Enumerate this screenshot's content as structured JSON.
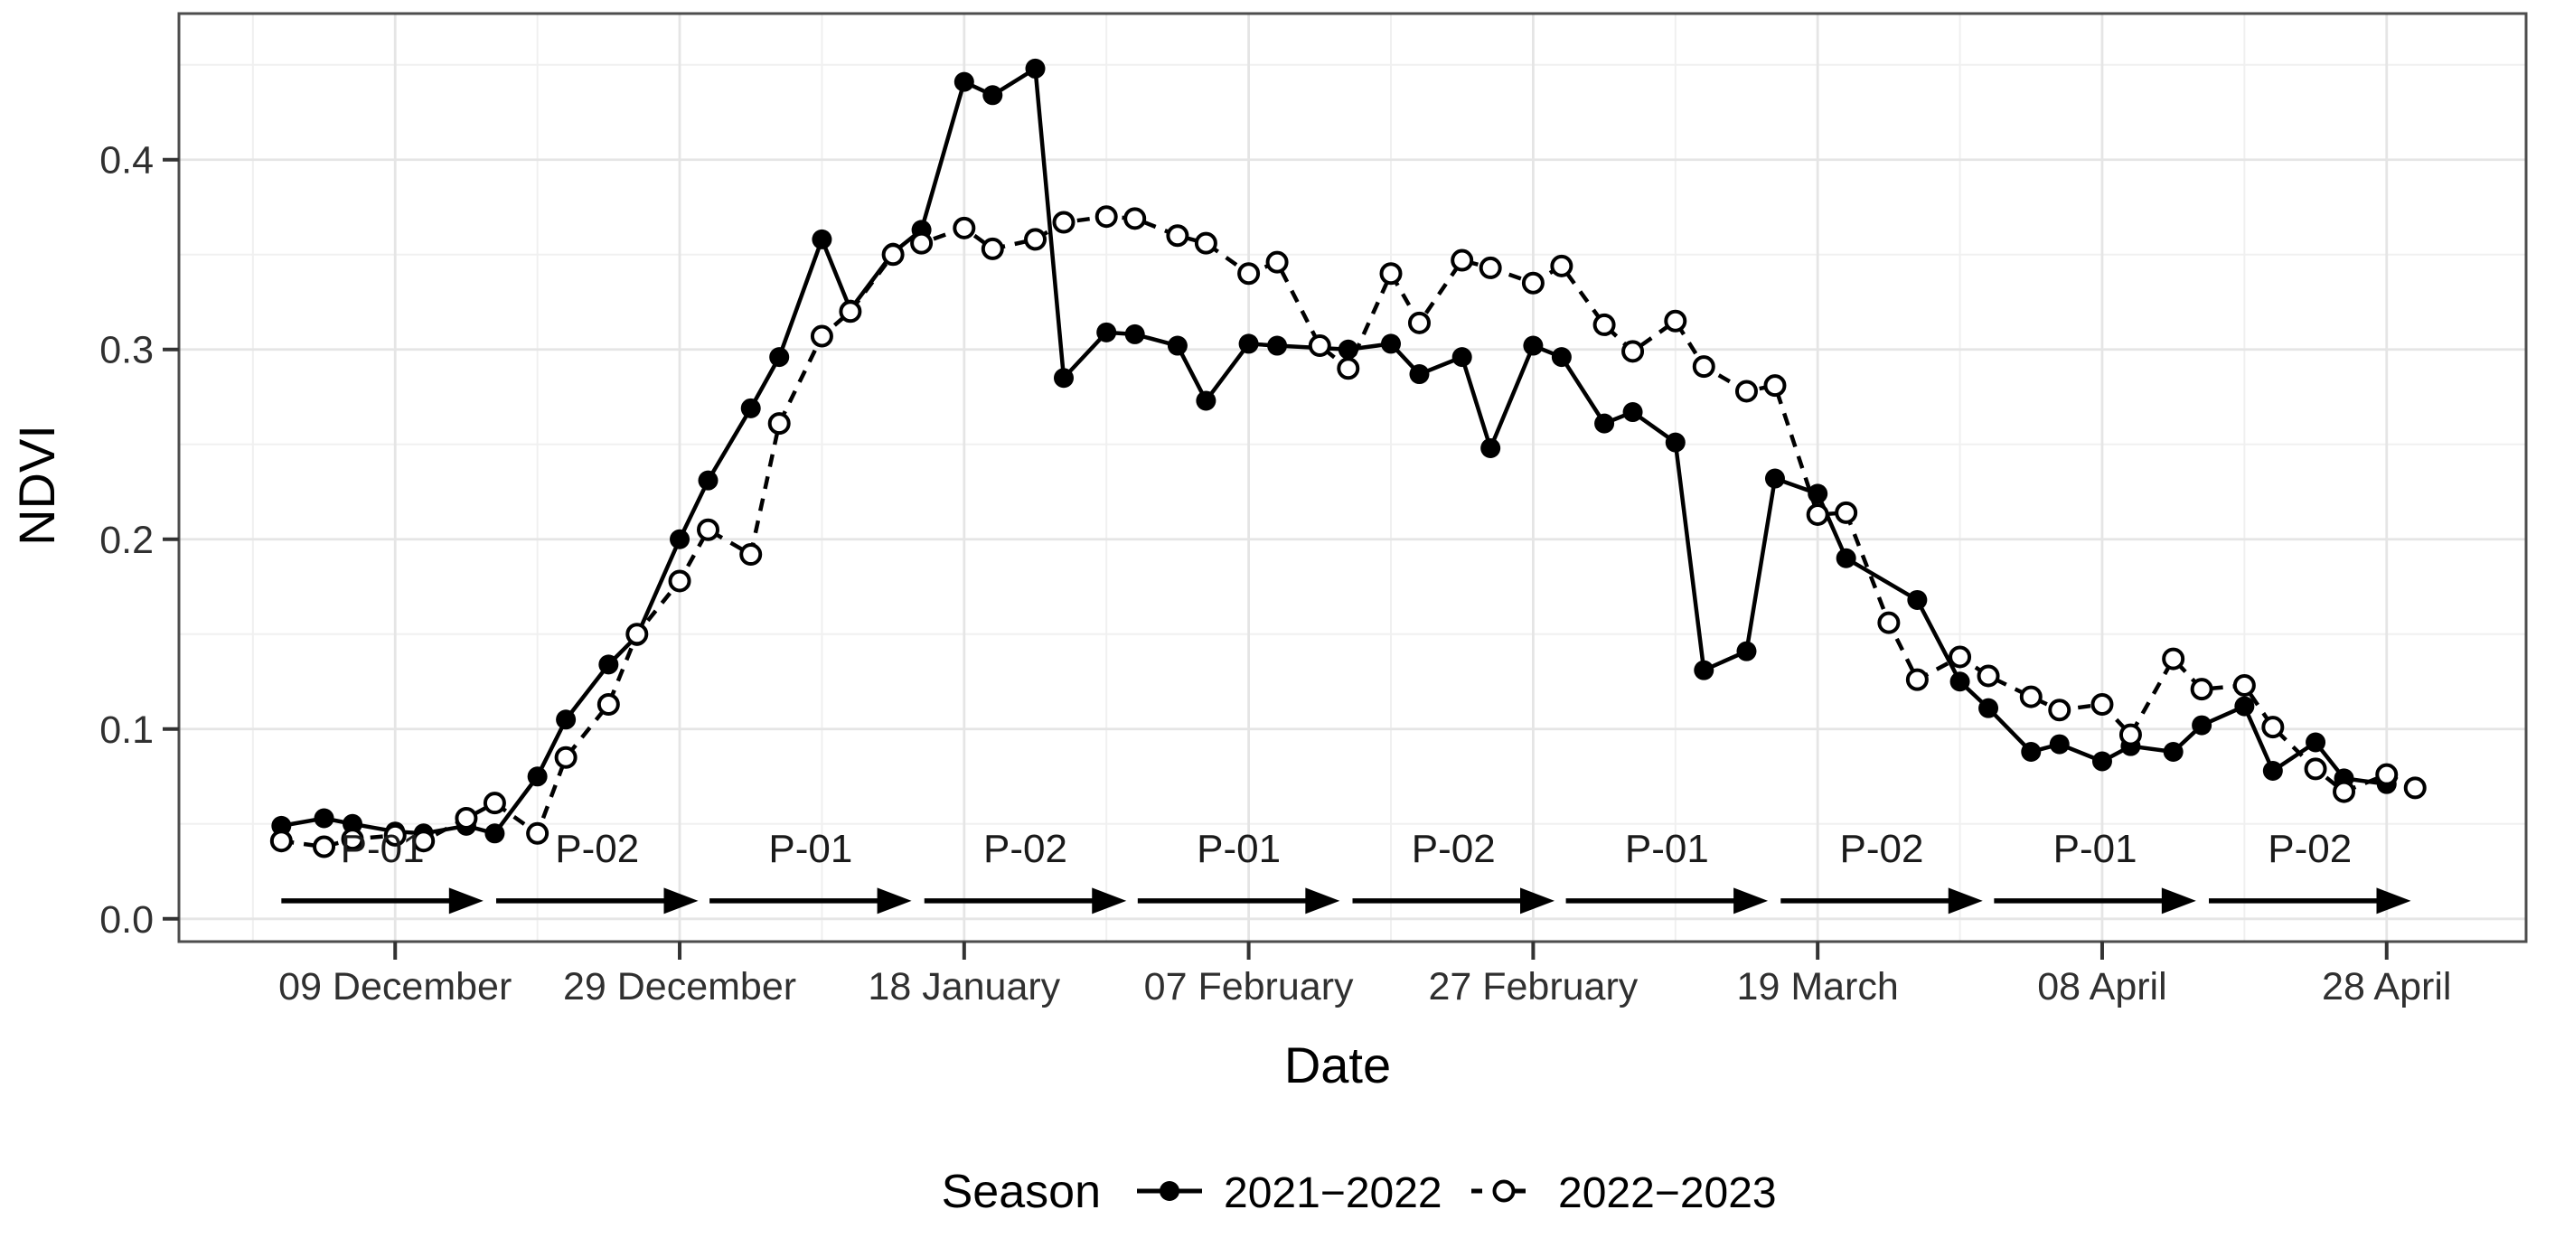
{
  "chart_data": {
    "type": "line",
    "title": "",
    "xlabel": "Date",
    "ylabel": "NDVI",
    "x_axis": {
      "unit": "day of season (days after 09 December)",
      "ticks": [
        {
          "day": 0,
          "label": "09 December"
        },
        {
          "day": 20,
          "label": "29 December"
        },
        {
          "day": 40,
          "label": "18 January"
        },
        {
          "day": 60,
          "label": "07 February"
        },
        {
          "day": 80,
          "label": "27 February"
        },
        {
          "day": 100,
          "label": "19 March"
        },
        {
          "day": 120,
          "label": "08 April"
        },
        {
          "day": 140,
          "label": "28 April"
        }
      ],
      "minor_gridline_days": [
        -10,
        10,
        30,
        50,
        70,
        90,
        110,
        130
      ],
      "xlim_days": [
        -15.2,
        149.8
      ]
    },
    "y_axis": {
      "ticks": [
        0.0,
        0.1,
        0.2,
        0.3,
        0.4
      ],
      "minor_gridlines": [
        0.05,
        0.15,
        0.25,
        0.35,
        0.45
      ],
      "ylim": [
        -0.012,
        0.477
      ]
    },
    "grid": "major and minor, light grey, on white panel with grey border (ggplot theme_bw style)",
    "legend": {
      "title": "Season",
      "position": "bottom-center"
    },
    "series": [
      {
        "name": "2021−2022",
        "line_style": "solid",
        "marker": "filled-circle",
        "color": "#000000",
        "points": [
          [
            -8,
            0.049,
            "01 Dec"
          ],
          [
            -5,
            0.053,
            "04 Dec"
          ],
          [
            -3,
            0.05,
            "06 Dec"
          ],
          [
            0,
            0.046,
            "09 Dec"
          ],
          [
            2,
            0.045,
            "11 Dec"
          ],
          [
            5,
            0.049,
            "14 Dec"
          ],
          [
            7,
            0.045,
            "16 Dec"
          ],
          [
            10,
            0.075,
            "19 Dec"
          ],
          [
            12,
            0.105,
            "21 Dec"
          ],
          [
            15,
            0.134,
            "24 Dec"
          ],
          [
            17,
            0.149,
            "26 Dec"
          ],
          [
            20,
            0.2,
            "29 Dec"
          ],
          [
            22,
            0.231,
            "31 Dec"
          ],
          [
            25,
            0.269,
            "03 Jan"
          ],
          [
            27,
            0.296,
            "05 Jan"
          ],
          [
            30,
            0.358,
            "08 Jan"
          ],
          [
            32,
            0.321,
            "10 Jan"
          ],
          [
            35,
            0.351,
            "13 Jan"
          ],
          [
            37,
            0.363,
            "15 Jan"
          ],
          [
            40,
            0.441,
            "18 Jan"
          ],
          [
            42,
            0.434,
            "20 Jan"
          ],
          [
            45,
            0.448,
            "23 Jan"
          ],
          [
            47,
            0.285,
            "25 Jan"
          ],
          [
            50,
            0.309,
            "28 Jan"
          ],
          [
            52,
            0.308,
            "30 Jan"
          ],
          [
            55,
            0.302,
            "02 Feb"
          ],
          [
            57,
            0.273,
            "04 Feb"
          ],
          [
            60,
            0.303,
            "07 Feb"
          ],
          [
            62,
            0.302,
            "09 Feb"
          ],
          [
            67,
            0.3,
            "14 Feb"
          ],
          [
            70,
            0.303,
            "17 Feb"
          ],
          [
            72,
            0.287,
            "19 Feb"
          ],
          [
            75,
            0.296,
            "22 Feb"
          ],
          [
            77,
            0.248,
            "24 Feb"
          ],
          [
            80,
            0.302,
            "27 Feb"
          ],
          [
            82,
            0.296,
            "01 Mar"
          ],
          [
            85,
            0.261,
            "04 Mar"
          ],
          [
            87,
            0.267,
            "06 Mar"
          ],
          [
            90,
            0.251,
            "09 Mar"
          ],
          [
            92,
            0.131,
            "11 Mar"
          ],
          [
            95,
            0.141,
            "14 Mar"
          ],
          [
            97,
            0.232,
            "16 Mar"
          ],
          [
            100,
            0.224,
            "19 Mar"
          ],
          [
            102,
            0.19,
            "21 Mar"
          ],
          [
            107,
            0.168,
            "26 Mar"
          ],
          [
            110,
            0.125,
            "29 Mar"
          ],
          [
            112,
            0.111,
            "31 Mar"
          ],
          [
            115,
            0.088,
            "03 Apr"
          ],
          [
            117,
            0.092,
            "05 Apr"
          ],
          [
            120,
            0.083,
            "08 Apr"
          ],
          [
            122,
            0.091,
            "10 Apr"
          ],
          [
            125,
            0.088,
            "13 Apr"
          ],
          [
            127,
            0.102,
            "15 Apr"
          ],
          [
            130,
            0.112,
            "18 Apr"
          ],
          [
            132,
            0.078,
            "20 Apr"
          ],
          [
            135,
            0.093,
            "23 Apr"
          ],
          [
            137,
            0.074,
            "25 Apr"
          ],
          [
            140,
            0.071,
            "28 Apr"
          ]
        ]
      },
      {
        "name": "2022−2023",
        "line_style": "dashed",
        "marker": "open-circle",
        "color": "#000000",
        "points": [
          [
            -8,
            0.041,
            "01 Dec"
          ],
          [
            -5,
            0.038,
            "04 Dec"
          ],
          [
            -3,
            0.042,
            "06 Dec"
          ],
          [
            0,
            0.044,
            "09 Dec"
          ],
          [
            2,
            0.041,
            "11 Dec"
          ],
          [
            5,
            0.053,
            "14 Dec"
          ],
          [
            7,
            0.061,
            "16 Dec"
          ],
          [
            10,
            0.045,
            "19 Dec"
          ],
          [
            12,
            0.085,
            "21 Dec"
          ],
          [
            15,
            0.113,
            "24 Dec"
          ],
          [
            17,
            0.15,
            "26 Dec"
          ],
          [
            20,
            0.178,
            "29 Dec"
          ],
          [
            22,
            0.205,
            "31 Dec"
          ],
          [
            25,
            0.192,
            "03 Jan"
          ],
          [
            27,
            0.261,
            "05 Jan"
          ],
          [
            30,
            0.307,
            "08 Jan"
          ],
          [
            32,
            0.32,
            "10 Jan"
          ],
          [
            35,
            0.35,
            "13 Jan"
          ],
          [
            37,
            0.356,
            "15 Jan"
          ],
          [
            40,
            0.364,
            "18 Jan"
          ],
          [
            42,
            0.353,
            "20 Jan"
          ],
          [
            45,
            0.358,
            "23 Jan"
          ],
          [
            47,
            0.367,
            "25 Jan"
          ],
          [
            50,
            0.37,
            "28 Jan"
          ],
          [
            52,
            0.369,
            "30 Jan"
          ],
          [
            55,
            0.36,
            "02 Feb"
          ],
          [
            57,
            0.356,
            "04 Feb"
          ],
          [
            60,
            0.34,
            "07 Feb"
          ],
          [
            62,
            0.346,
            "09 Feb"
          ],
          [
            65,
            0.302,
            "12 Feb"
          ],
          [
            67,
            0.29,
            "14 Feb"
          ],
          [
            70,
            0.34,
            "17 Feb"
          ],
          [
            72,
            0.314,
            "19 Feb"
          ],
          [
            75,
            0.347,
            "22 Feb"
          ],
          [
            77,
            0.343,
            "24 Feb"
          ],
          [
            80,
            0.335,
            "27 Feb"
          ],
          [
            82,
            0.344,
            "01 Mar"
          ],
          [
            85,
            0.313,
            "04 Mar"
          ],
          [
            87,
            0.299,
            "06 Mar"
          ],
          [
            90,
            0.315,
            "09 Mar"
          ],
          [
            92,
            0.291,
            "11 Mar"
          ],
          [
            95,
            0.278,
            "14 Mar"
          ],
          [
            97,
            0.281,
            "16 Mar"
          ],
          [
            100,
            0.213,
            "19 Mar"
          ],
          [
            102,
            0.214,
            "21 Mar"
          ],
          [
            105,
            0.156,
            "24 Mar"
          ],
          [
            107,
            0.126,
            "26 Mar"
          ],
          [
            110,
            0.138,
            "29 Mar"
          ],
          [
            112,
            0.128,
            "31 Mar"
          ],
          [
            115,
            0.117,
            "03 Apr"
          ],
          [
            117,
            0.11,
            "05 Apr"
          ],
          [
            120,
            0.113,
            "08 Apr"
          ],
          [
            122,
            0.097,
            "10 Apr"
          ],
          [
            125,
            0.137,
            "13 Apr"
          ],
          [
            127,
            0.121,
            "15 Apr"
          ],
          [
            130,
            0.123,
            "18 Apr"
          ],
          [
            132,
            0.101,
            "20 Apr"
          ],
          [
            135,
            0.079,
            "23 Apr"
          ],
          [
            137,
            0.067,
            "25 Apr"
          ],
          [
            140,
            0.076,
            "28 Apr"
          ],
          [
            142,
            0.069,
            "30 Apr"
          ]
        ]
      }
    ],
    "phases": [
      {
        "label": "P-01",
        "start_day": -8.0,
        "end_day": 6.2
      },
      {
        "label": "P-02",
        "start_day": 7.1,
        "end_day": 21.3
      },
      {
        "label": "P-01",
        "start_day": 22.1,
        "end_day": 36.3
      },
      {
        "label": "P-02",
        "start_day": 37.2,
        "end_day": 51.4
      },
      {
        "label": "P-01",
        "start_day": 52.2,
        "end_day": 66.4
      },
      {
        "label": "P-02",
        "start_day": 67.3,
        "end_day": 81.5
      },
      {
        "label": "P-01",
        "start_day": 82.3,
        "end_day": 96.5
      },
      {
        "label": "P-02",
        "start_day": 97.4,
        "end_day": 111.6
      },
      {
        "label": "P-01",
        "start_day": 112.4,
        "end_day": 126.6
      },
      {
        "label": "P-02",
        "start_day": 127.5,
        "end_day": 141.7
      }
    ],
    "phase_arrow_y": 0.0095,
    "phase_label_y": 0.03,
    "colors": {
      "series": "#000000",
      "panel_border": "#4d4d4d",
      "major_grid": "#e5e5e5",
      "minor_grid": "#f0f0f0",
      "tick_text": "#303030",
      "background": "#ffffff"
    }
  }
}
